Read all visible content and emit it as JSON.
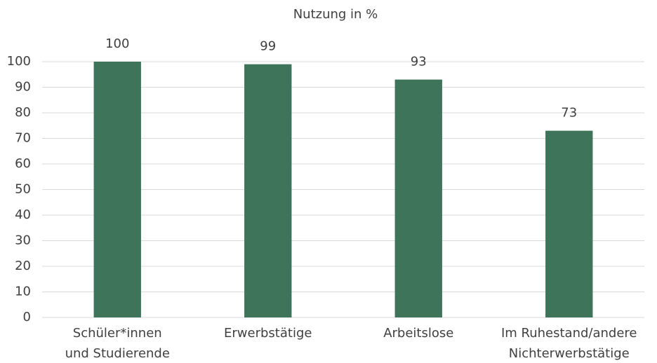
{
  "chart_data": {
    "type": "bar",
    "title": "Nutzung in %",
    "categories": [
      "Schüler*innen\nund Studierende",
      "Erwerbstätige",
      "Arbeitslose",
      "Im Ruhestand/andere\nNichterwerbstätige"
    ],
    "values": [
      100,
      99,
      93,
      73
    ],
    "color": "#3e7459",
    "ylim": [
      0,
      100
    ],
    "yticks": [
      0,
      10,
      20,
      30,
      40,
      50,
      60,
      70,
      80,
      90,
      100
    ],
    "grid": true
  }
}
